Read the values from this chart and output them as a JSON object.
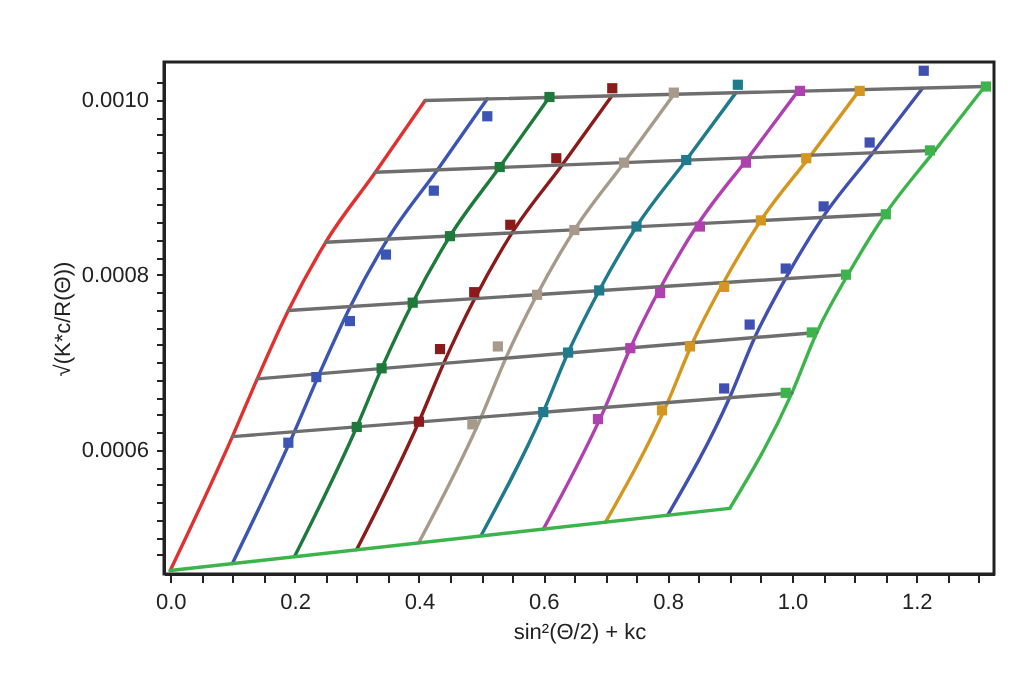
{
  "chart_data": {
    "type": "line",
    "xlabel": "sin²(Θ/2) + kc",
    "ylabel": "√(K*c/R(Θ))",
    "xlim": [
      -0.01,
      1.325
    ],
    "ylim": [
      0.000458,
      0.001043
    ],
    "xticks": [
      {
        "value": 0,
        "label": "0.0"
      },
      {
        "value": 0.05,
        "label": null
      },
      {
        "value": 0.1,
        "label": null
      },
      {
        "value": 0.15,
        "label": null
      },
      0.2,
      {
        "value": 0.25,
        "label": null
      },
      {
        "value": 0.3,
        "label": null
      },
      {
        "value": 0.35,
        "label": null
      },
      0.4,
      {
        "value": 0.45,
        "label": null
      },
      {
        "value": 0.5,
        "label": null
      },
      {
        "value": 0.55,
        "label": null
      },
      0.6,
      {
        "value": 0.65,
        "label": null
      },
      {
        "value": 0.7,
        "label": null
      },
      {
        "value": 0.75,
        "label": null
      },
      0.8,
      {
        "value": 0.85,
        "label": null
      },
      {
        "value": 0.9,
        "label": null
      },
      {
        "value": 0.95,
        "label": null
      },
      {
        "value": 1,
        "label": "1.0"
      },
      {
        "value": 1.05,
        "label": null
      },
      {
        "value": 1.1,
        "label": null
      },
      {
        "value": 1.15,
        "label": null
      },
      1.2,
      {
        "value": 1.25,
        "label": null
      },
      {
        "value": 1.3,
        "label": null
      }
    ],
    "yticks": [
      {
        "value": 0.00048,
        "label": null
      },
      {
        "value": 0.0005,
        "label": null
      },
      {
        "value": 0.00052,
        "label": null
      },
      {
        "value": 0.00054,
        "label": null
      },
      {
        "value": 0.00056,
        "label": null
      },
      {
        "value": 0.00058,
        "label": null
      },
      0.0006,
      {
        "value": 0.00062,
        "label": null
      },
      {
        "value": 0.00064,
        "label": null
      },
      {
        "value": 0.00066,
        "label": null
      },
      {
        "value": 0.00068,
        "label": null
      },
      {
        "value": 0.0007,
        "label": null
      },
      {
        "value": 0.00072,
        "label": null
      },
      {
        "value": 0.00074,
        "label": null
      },
      {
        "value": 0.00076,
        "label": null
      },
      {
        "value": 0.00078,
        "label": null
      },
      0.0008,
      {
        "value": 0.00082,
        "label": null
      },
      {
        "value": 0.00084,
        "label": null
      },
      {
        "value": 0.00086,
        "label": null
      },
      {
        "value": 0.00088,
        "label": null
      },
      {
        "value": 0.0009,
        "label": null
      },
      {
        "value": 0.00092,
        "label": null
      },
      {
        "value": 0.00094,
        "label": null
      },
      {
        "value": 0.00096,
        "label": null
      },
      {
        "value": 0.00098,
        "label": null
      },
      {
        "value": 0.001,
        "label": "0.0010"
      },
      {
        "value": 0.00102,
        "label": null
      }
    ],
    "grid": false,
    "legend": false,
    "line_style": "solid",
    "series": [
      {
        "color": "#e0312f",
        "x": [
          0.0,
          0.1,
          0.14,
          0.19,
          0.25,
          0.33,
          0.41
        ],
        "values": [
          0.000462,
          0.000615,
          0.000681,
          0.000759,
          0.000837,
          0.000917,
          0.000999
        ]
      },
      {
        "color": "#3a55b4",
        "x": [
          0.1,
          0.2,
          0.24,
          0.29,
          0.35,
          0.43,
          0.51
        ],
        "values": [
          0.00047,
          0.000621,
          0.000687,
          0.000764,
          0.000841,
          0.00092,
          0.001001
        ]
      },
      {
        "color": "#1e7a3a",
        "x": [
          0.2,
          0.3,
          0.34,
          0.39,
          0.45,
          0.53,
          0.61
        ],
        "values": [
          0.000478,
          0.000626,
          0.000693,
          0.000768,
          0.000844,
          0.000923,
          0.001003
        ]
      },
      {
        "color": "#8b1a1a",
        "x": [
          0.3,
          0.4,
          0.44,
          0.49,
          0.55,
          0.63,
          0.71
        ],
        "values": [
          0.000486,
          0.000632,
          0.000699,
          0.000773,
          0.000848,
          0.000925,
          0.001004
        ]
      },
      {
        "color": "#a89a8a",
        "x": [
          0.4,
          0.5,
          0.54,
          0.59,
          0.65,
          0.73,
          0.81
        ],
        "values": [
          0.000494,
          0.000637,
          0.000705,
          0.000777,
          0.000851,
          0.000928,
          0.001006
        ]
      },
      {
        "color": "#1e7a8c",
        "x": [
          0.5,
          0.6,
          0.64,
          0.69,
          0.75,
          0.83,
          0.91
        ],
        "values": [
          0.000502,
          0.000643,
          0.000711,
          0.000782,
          0.000855,
          0.000931,
          0.001008
        ]
      },
      {
        "color": "#b040b0",
        "x": [
          0.6,
          0.7,
          0.74,
          0.79,
          0.85,
          0.93,
          1.01
        ],
        "values": [
          0.000509,
          0.000649,
          0.000716,
          0.000787,
          0.000859,
          0.000934,
          0.00101
        ]
      },
      {
        "color": "#d4961e",
        "x": [
          0.7,
          0.8,
          0.84,
          0.89,
          0.95,
          1.03,
          1.11
        ],
        "values": [
          0.000517,
          0.000654,
          0.000722,
          0.000791,
          0.000862,
          0.000936,
          0.001012
        ]
      },
      {
        "color": "#4050b0",
        "x": [
          0.8,
          0.9,
          0.94,
          0.99,
          1.05,
          1.13,
          1.21
        ],
        "values": [
          0.000525,
          0.00066,
          0.000728,
          0.000796,
          0.000866,
          0.000939,
          0.001013
        ]
      },
      {
        "color": "#3cb44b",
        "x": [
          0.9,
          1.0,
          1.04,
          1.09,
          1.15,
          1.23,
          1.31
        ],
        "values": [
          0.000533,
          0.000665,
          0.000734,
          0.0008,
          0.000869,
          0.000942,
          0.001015
        ]
      },
      {
        "color": "#6e6e6e",
        "x": [
          0.41,
          1.31
        ],
        "values": [
          0.000999,
          0.001015
        ]
      },
      {
        "color": "#6e6e6e",
        "x": [
          0.33,
          1.23
        ],
        "values": [
          0.000917,
          0.000942
        ]
      },
      {
        "color": "#6e6e6e",
        "x": [
          0.25,
          1.15
        ],
        "values": [
          0.000837,
          0.000869
        ]
      },
      {
        "color": "#6e6e6e",
        "x": [
          0.19,
          1.09
        ],
        "values": [
          0.000759,
          0.0008
        ]
      },
      {
        "color": "#6e6e6e",
        "x": [
          0.14,
          1.04
        ],
        "values": [
          0.000681,
          0.000734
        ]
      },
      {
        "color": "#6e6e6e",
        "x": [
          0.1,
          1.0
        ],
        "values": [
          0.000615,
          0.000665
        ]
      },
      {
        "color": "#3cb44b",
        "x": [
          0.0,
          0.9
        ],
        "values": [
          0.000462,
          0.000533
        ]
      },
      {
        "type": "scatter",
        "marker": "square",
        "color": "#3a55b4",
        "x": [
          0.19,
          0.235,
          0.289,
          0.347,
          0.424,
          0.51
        ],
        "values": [
          0.000608,
          0.000683,
          0.000747,
          0.000823,
          0.000896,
          0.000981
        ]
      },
      {
        "type": "scatter",
        "marker": "square",
        "color": "#1e7a3a",
        "x": [
          0.3,
          0.34,
          0.39,
          0.45,
          0.53,
          0.61
        ],
        "values": [
          0.000626,
          0.000693,
          0.000768,
          0.000844,
          0.000923,
          0.001003
        ]
      },
      {
        "type": "scatter",
        "marker": "square",
        "color": "#8b1a1a",
        "x": [
          0.4,
          0.434,
          0.489,
          0.547,
          0.621,
          0.711
        ],
        "values": [
          0.000632,
          0.000715,
          0.00078,
          0.000857,
          0.000933,
          0.001013
        ]
      },
      {
        "type": "scatter",
        "marker": "square",
        "color": "#a89a8a",
        "x": [
          0.486,
          0.527,
          0.59,
          0.65,
          0.73,
          0.81
        ],
        "values": [
          0.000629,
          0.000718,
          0.000777,
          0.000851,
          0.000928,
          0.001008
        ]
      },
      {
        "type": "scatter",
        "marker": "square",
        "color": "#1e7a8c",
        "x": [
          0.6,
          0.64,
          0.69,
          0.75,
          0.83,
          0.913
        ],
        "values": [
          0.000643,
          0.000711,
          0.000782,
          0.000855,
          0.000931,
          0.001017
        ]
      },
      {
        "type": "scatter",
        "marker": "square",
        "color": "#b040b0",
        "x": [
          0.688,
          0.74,
          0.788,
          0.852,
          0.926,
          1.013
        ],
        "values": [
          0.000635,
          0.000716,
          0.000779,
          0.000855,
          0.000928,
          0.00101
        ]
      },
      {
        "type": "scatter",
        "marker": "square",
        "color": "#d4961e",
        "x": [
          0.791,
          0.836,
          0.891,
          0.95,
          1.023,
          1.109
        ],
        "values": [
          0.000645,
          0.000718,
          0.000786,
          0.000862,
          0.000933,
          0.00101
        ]
      },
      {
        "type": "scatter",
        "marker": "square",
        "color": "#4050b0",
        "x": [
          0.891,
          0.932,
          0.99,
          1.051,
          1.125,
          1.212
        ],
        "values": [
          0.00067,
          0.000743,
          0.000807,
          0.000878,
          0.000951,
          0.001033
        ]
      },
      {
        "type": "scatter",
        "marker": "square",
        "color": "#3cb44b",
        "x": [
          0.99,
          1.032,
          1.087,
          1.151,
          1.222,
          1.312
        ],
        "values": [
          0.000665,
          0.000734,
          0.0008,
          0.000869,
          0.000942,
          0.001015
        ]
      }
    ]
  }
}
